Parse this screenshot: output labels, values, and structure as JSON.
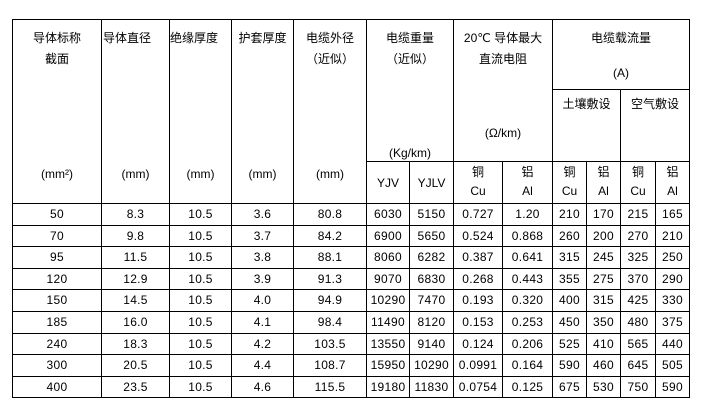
{
  "header": {
    "section": {
      "line1": "导体标称",
      "line2": "截面",
      "unit": "(mm²)"
    },
    "diameter": {
      "line1": "导体直径",
      "unit": "(mm)"
    },
    "insulation": {
      "line1": "绝缘厚度",
      "unit": "(mm)"
    },
    "sheath": {
      "line1": "护套厚度",
      "unit": "(mm)"
    },
    "outer": {
      "line1": "电缆外径",
      "line2": "（近似）",
      "unit": "(mm)"
    },
    "weight": {
      "line1": "电缆重量",
      "line2": "（近似）",
      "unit": "(Kg/km)",
      "yjv": "YJV",
      "yjlv": "YJLV"
    },
    "resistance": {
      "line1": "20℃  导体最大",
      "line2": "直流电阻",
      "unit": "(Ω/km)",
      "cu_cn": "铜",
      "cu": "Cu",
      "al_cn": "铝",
      "al": "Al"
    },
    "current": {
      "line1": "电缆载流量",
      "unit": "(A)",
      "soil": "土壤敷设",
      "air": "空气敷设",
      "cu_cn": "铜",
      "cu": "Cu",
      "al_cn": "铝",
      "al": "Al"
    }
  },
  "rows": [
    [
      "50",
      "8.3",
      "10.5",
      "3.6",
      "80.8",
      "6030",
      "5150",
      "0.727",
      "1.20",
      "210",
      "170",
      "215",
      "165"
    ],
    [
      "70",
      "9.8",
      "10.5",
      "3.7",
      "84.2",
      "6900",
      "5650",
      "0.524",
      "0.868",
      "260",
      "200",
      "270",
      "210"
    ],
    [
      "95",
      "11.5",
      "10.5",
      "3.8",
      "88.1",
      "8060",
      "6282",
      "0.387",
      "0.641",
      "315",
      "245",
      "325",
      "250"
    ],
    [
      "120",
      "12.9",
      "10.5",
      "3.9",
      "91.3",
      "9070",
      "6830",
      "0.268",
      "0.443",
      "355",
      "275",
      "370",
      "290"
    ],
    [
      "150",
      "14.5",
      "10.5",
      "4.0",
      "94.9",
      "10290",
      "7470",
      "0.193",
      "0.320",
      "400",
      "315",
      "425",
      "330"
    ],
    [
      "185",
      "16.0",
      "10.5",
      "4.1",
      "98.4",
      "11490",
      "8120",
      "0.153",
      "0.253",
      "450",
      "350",
      "480",
      "375"
    ],
    [
      "240",
      "18.3",
      "10.5",
      "4.2",
      "103.5",
      "13550",
      "9140",
      "0.124",
      "0.206",
      "525",
      "410",
      "565",
      "440"
    ],
    [
      "300",
      "20.5",
      "10.5",
      "4.4",
      "108.7",
      "15950",
      "10290",
      "0.0991",
      "0.164",
      "590",
      "460",
      "645",
      "505"
    ],
    [
      "400",
      "23.5",
      "10.5",
      "4.6",
      "115.5",
      "19180",
      "11830",
      "0.0754",
      "0.125",
      "675",
      "530",
      "750",
      "590"
    ]
  ]
}
